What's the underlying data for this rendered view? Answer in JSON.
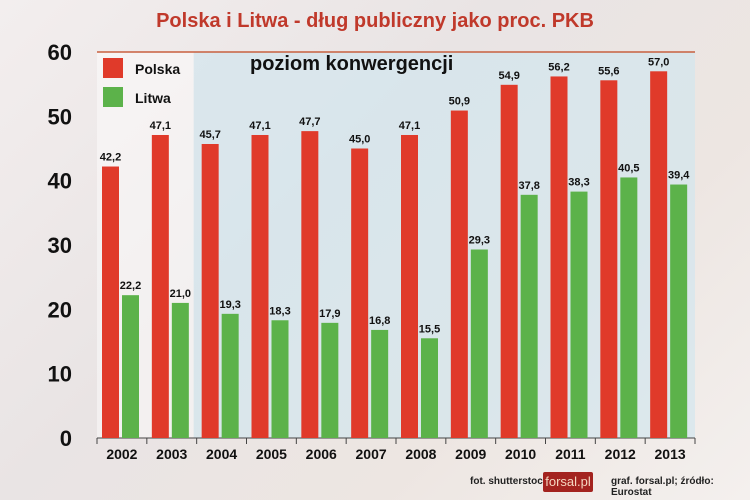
{
  "chart_data": {
    "type": "bar",
    "title": "Polska i Litwa - dług publiczny jako proc. PKB",
    "annotation": "poziom konwergencji",
    "categories": [
      "2002",
      "2003",
      "2004",
      "2005",
      "2006",
      "2007",
      "2008",
      "2009",
      "2010",
      "2011",
      "2012",
      "2013"
    ],
    "series": [
      {
        "name": "Polska",
        "color": "#e03a2a",
        "values": [
          42.2,
          47.1,
          45.7,
          47.1,
          47.7,
          45.0,
          47.1,
          50.9,
          54.9,
          56.2,
          55.6,
          57.0
        ],
        "labels": [
          "42,2",
          "47,1",
          "45,7",
          "47,1",
          "47,7",
          "45,0",
          "47,1",
          "50,9",
          "54,9",
          "56,2",
          "55,6",
          "57,0"
        ]
      },
      {
        "name": "Litwa",
        "color": "#5cb24a",
        "values": [
          22.2,
          21.0,
          19.3,
          18.3,
          17.9,
          16.8,
          15.5,
          29.3,
          37.8,
          38.3,
          40.5,
          39.4
        ],
        "labels": [
          "22,2",
          "21,0",
          "19,3",
          "18,3",
          "17,9",
          "16,8",
          "15,5",
          "29,3",
          "37,8",
          "38,3",
          "40,5",
          "39,4"
        ]
      }
    ],
    "ylim": [
      0,
      60
    ],
    "yticks": [
      0,
      10,
      20,
      30,
      40,
      50,
      60
    ],
    "legend": "top-left",
    "grid": false
  },
  "footer": {
    "photo": "fot. shutterstock",
    "logo": "forsal.pl",
    "source": "graf. forsal.pl;  źródło: Eurostat"
  }
}
